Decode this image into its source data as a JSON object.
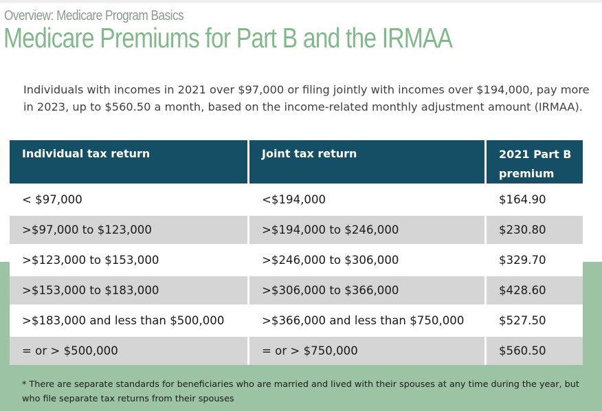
{
  "header": {
    "eyebrow": "Overview: Medicare Program Basics",
    "title": "Medicare Premiums for Part B and the IRMAA"
  },
  "intro": "Individuals with incomes in 2021 over $97,000 or filing jointly with incomes over $194,000, pay more in 2023, up to $560.50 a month, based on the income-related monthly adjustment amount (IRMAA).",
  "table": {
    "headers": {
      "individual": "Individual tax return",
      "joint": "Joint tax return",
      "premium": "2021 Part B premium"
    },
    "rows": [
      {
        "individual": "< $97,000",
        "joint": "<$194,000",
        "premium": "$164.90"
      },
      {
        "individual": ">$97,000 to $123,000",
        "joint": ">$194,000 to $246,000",
        "premium": "$230.80"
      },
      {
        "individual": ">$123,000 to $153,000",
        "joint": ">$246,000 to $306,000",
        "premium": "$329.70"
      },
      {
        "individual": ">$153,000 to $183,000",
        "joint": ">$306,000 to $366,000",
        "premium": "$428.60"
      },
      {
        "individual": ">$183,000 and less than $500,000",
        "joint": ">$366,000 and less than $750,000",
        "premium": "$527.50"
      },
      {
        "individual": "= or > $500,000",
        "joint": "= or > $750,000",
        "premium": "$560.50"
      }
    ]
  },
  "footnote": "* There are separate standards for beneficiaries who are married and lived with their spouses at any time during the year, but who file separate tax returns from their spouses",
  "colors": {
    "header_bg": "#154f66",
    "title_green": "#82b98b",
    "band_green": "#9cc4a4",
    "row_alt_gray": "#d5d5d5"
  }
}
